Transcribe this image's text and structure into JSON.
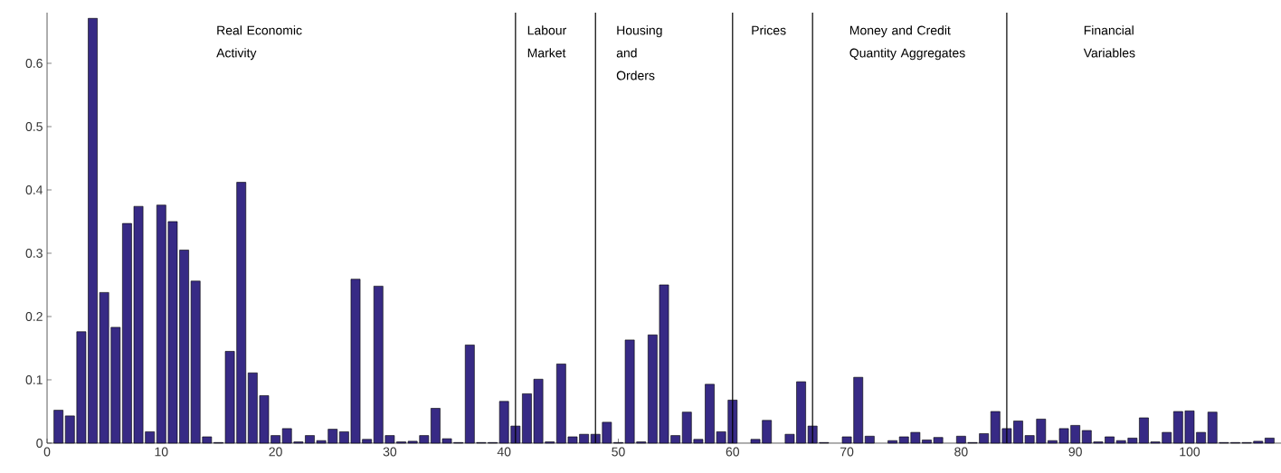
{
  "chart_data": {
    "type": "bar",
    "x": [
      1,
      2,
      3,
      4,
      5,
      6,
      7,
      8,
      9,
      10,
      11,
      12,
      13,
      14,
      15,
      16,
      17,
      18,
      19,
      20,
      21,
      22,
      23,
      24,
      25,
      26,
      27,
      28,
      29,
      30,
      31,
      32,
      33,
      34,
      35,
      36,
      37,
      38,
      39,
      40,
      41,
      42,
      43,
      44,
      45,
      46,
      47,
      48,
      49,
      50,
      51,
      52,
      53,
      54,
      55,
      56,
      57,
      58,
      59,
      60,
      61,
      62,
      63,
      64,
      65,
      66,
      67,
      68,
      69,
      70,
      71,
      72,
      73,
      74,
      75,
      76,
      77,
      78,
      79,
      80,
      81,
      82,
      83,
      84,
      85,
      86,
      87,
      88,
      89,
      90,
      91,
      92,
      93,
      94,
      95,
      96,
      97,
      98,
      99,
      100,
      101,
      102,
      103,
      104,
      105,
      106,
      107
    ],
    "values": [
      0.052,
      0.043,
      0.176,
      0.671,
      0.238,
      0.183,
      0.347,
      0.374,
      0.018,
      0.376,
      0.35,
      0.305,
      0.256,
      0.01,
      0.001,
      0.145,
      0.412,
      0.111,
      0.075,
      0.012,
      0.023,
      0.002,
      0.012,
      0.004,
      0.022,
      0.018,
      0.259,
      0.006,
      0.248,
      0.012,
      0.002,
      0.003,
      0.012,
      0.055,
      0.007,
      0.001,
      0.155,
      0.001,
      0.001,
      0.066,
      0.027,
      0.078,
      0.101,
      0.002,
      0.125,
      0.01,
      0.014,
      0.014,
      0.033,
      0.001,
      0.163,
      0.002,
      0.171,
      0.25,
      0.012,
      0.049,
      0.006,
      0.093,
      0.018,
      0.068,
      null,
      0.006,
      0.036,
      null,
      0.014,
      0.097,
      0.027,
      0.001,
      null,
      0.01,
      0.104,
      0.011,
      null,
      0.004,
      0.01,
      0.017,
      0.005,
      0.009,
      null,
      0.011,
      0.001,
      0.015,
      0.05,
      0.023,
      0.035,
      0.012,
      0.038,
      0.004,
      0.023,
      0.028,
      0.02,
      0.002,
      0.01,
      0.004,
      0.008,
      0.04,
      0.002,
      0.017,
      0.05,
      0.051,
      0.017,
      0.049,
      0.001,
      0.001,
      0.001,
      0.003,
      0.008
    ],
    "color": "#372a85",
    "xlim": [
      0,
      108
    ],
    "ylim": [
      0,
      0.68
    ],
    "xticks": [
      0,
      10,
      20,
      30,
      40,
      50,
      60,
      70,
      80,
      90,
      100
    ],
    "yticks": [
      0,
      0.1,
      0.2,
      0.3,
      0.4,
      0.5,
      0.6
    ],
    "ref_lines": [
      {
        "axis": "x",
        "value": 41,
        "color": "#000000"
      },
      {
        "axis": "x",
        "value": 48,
        "color": "#000000"
      },
      {
        "axis": "x",
        "value": 60,
        "color": "#000000"
      },
      {
        "axis": "x",
        "value": 67,
        "color": "#000000"
      },
      {
        "axis": "x",
        "value": 84,
        "color": "#000000"
      }
    ],
    "annotations": [
      "Real Economic Activity",
      "Labour Market",
      "Housing and Orders",
      "Prices",
      "Money and Credit Quantity Aggregates",
      "Financial Variables"
    ],
    "grid": false
  }
}
